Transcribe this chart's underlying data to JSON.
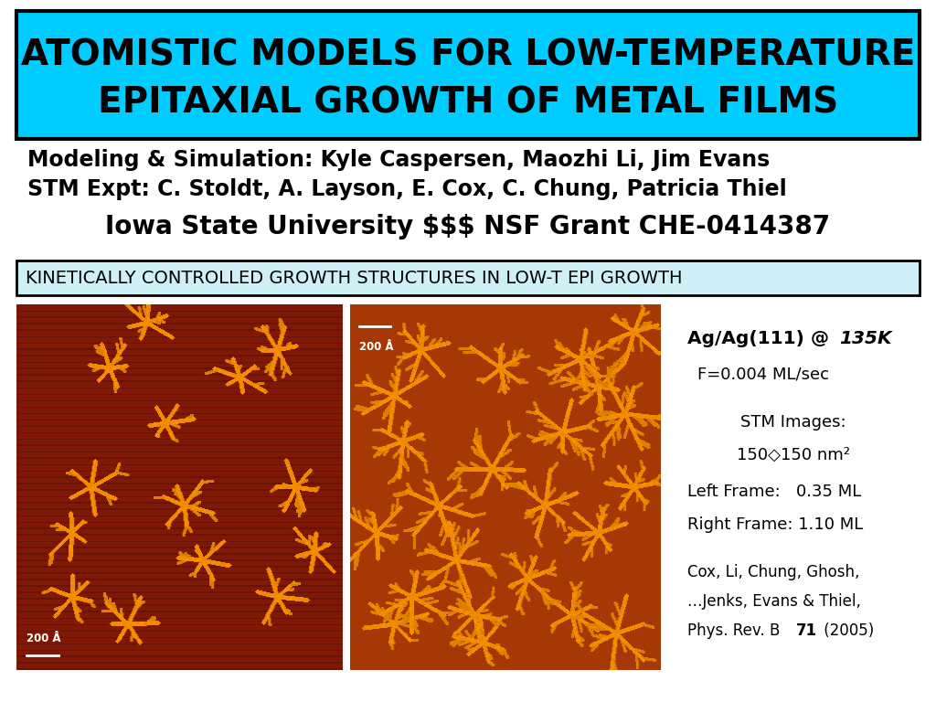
{
  "bg_color": "#ffffff",
  "title_text_line1": "ATOMISTIC MODELS FOR LOW-TEMPERATURE",
  "title_text_line2": "EPITAXIAL GROWTH OF METAL FILMS",
  "title_bg": "#00ccff",
  "title_border": "#000000",
  "subtitle_line1": "Modeling & Simulation: Kyle Caspersen, Maozhi Li, Jim Evans",
  "subtitle_line2": "STM Expt: C. Stoldt, A. Layson, E. Cox, C. Chung, Patricia Thiel",
  "subtitle_line3": "Iowa State University $$$ NSF Grant CHE-0414387",
  "section_text": "KINETICALLY CONTROLLED GROWTH STRUCTURES IN LOW-T EPI GROWTH",
  "section_bg": "#d0f0f8",
  "section_border": "#000000",
  "info_box_bg": "#d0f0f8",
  "info_box_border": "#000000"
}
